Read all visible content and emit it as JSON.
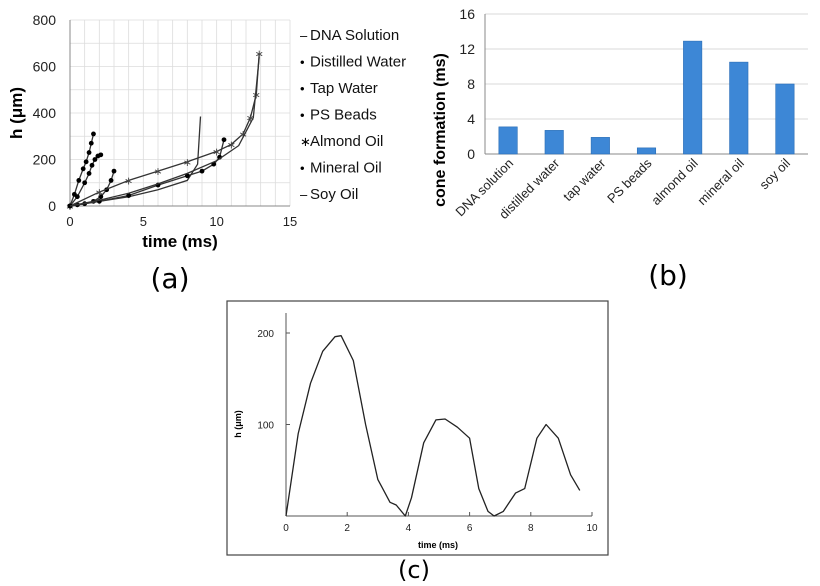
{
  "chart_data": [
    {
      "panel": "(a)",
      "type": "line",
      "xlabel": "time (ms)",
      "ylabel": "h (μm)",
      "xlim": [
        0,
        15
      ],
      "ylim": [
        0,
        800
      ],
      "xticks": [
        "0",
        "5",
        "10",
        "15"
      ],
      "yticks": [
        "0",
        "200",
        "400",
        "600",
        "800"
      ],
      "grid": true,
      "legend_position": "right",
      "series": [
        {
          "name": "DNA Solution",
          "marker": "dash",
          "x": [
            0,
            2,
            4,
            6,
            8,
            8.7,
            8.9
          ],
          "y": [
            0,
            20,
            40,
            70,
            110,
            180,
            385
          ]
        },
        {
          "name": "Distilled Water",
          "marker": "dot",
          "x": [
            0,
            0.5,
            1,
            1.3,
            1.5,
            1.7,
            1.9,
            2.1
          ],
          "y": [
            0,
            40,
            100,
            140,
            175,
            200,
            215,
            220
          ]
        },
        {
          "name": "Tap Water",
          "marker": "dot",
          "x": [
            0,
            0.5,
            1,
            1.6,
            2.1,
            2.5,
            2.8,
            3.0
          ],
          "y": [
            0,
            5,
            10,
            20,
            40,
            70,
            110,
            150
          ]
        },
        {
          "name": "PS Beads",
          "marker": "dot",
          "x": [
            0,
            0.3,
            0.6,
            0.9,
            1.1,
            1.3,
            1.45,
            1.6
          ],
          "y": [
            0,
            50,
            110,
            160,
            190,
            230,
            270,
            310
          ]
        },
        {
          "name": "Almond Oil",
          "marker": "star",
          "x": [
            0,
            2,
            4,
            6,
            8,
            10,
            11,
            11.8,
            12.3,
            12.7,
            12.9
          ],
          "y": [
            0,
            60,
            110,
            150,
            190,
            235,
            265,
            310,
            380,
            480,
            655
          ]
        },
        {
          "name": "Mineral Oil",
          "marker": "dot",
          "x": [
            0,
            2,
            4,
            6,
            8,
            9,
            9.8,
            10.2,
            10.5
          ],
          "y": [
            0,
            20,
            45,
            90,
            130,
            150,
            180,
            210,
            285
          ]
        },
        {
          "name": "Soy Oil",
          "marker": "dash",
          "x": [
            0,
            2,
            4,
            6,
            8,
            10,
            11.5,
            12.5,
            12.9
          ],
          "y": [
            0,
            25,
            55,
            95,
            140,
            195,
            260,
            380,
            640
          ]
        }
      ]
    },
    {
      "panel": "(b)",
      "type": "bar",
      "ylabel": "cone formation (ms)",
      "ylim": [
        0,
        16
      ],
      "yticks": [
        "0",
        "4",
        "8",
        "12",
        "16"
      ],
      "grid": true,
      "categories": [
        "DNA solution",
        "distilled water",
        "tap water",
        "PS beads",
        "almond oil",
        "mineral oil",
        "soy oil"
      ],
      "values": [
        3.1,
        2.7,
        1.9,
        0.7,
        12.9,
        10.5,
        8.0
      ],
      "bar_color": "#3d87d6"
    },
    {
      "panel": "(c)",
      "type": "line",
      "xlabel": "time (ms)",
      "ylabel": "h (μm)",
      "xlim": [
        0,
        10
      ],
      "ylim": [
        0,
        200
      ],
      "xticks": [
        "0",
        "2",
        "4",
        "6",
        "8",
        "10"
      ],
      "yticks": [
        "100",
        "200"
      ],
      "series": [
        {
          "x": [
            0,
            0.4,
            0.8,
            1.2,
            1.6,
            1.8,
            2.2,
            2.6,
            3.0,
            3.4,
            3.6,
            3.9,
            4.1,
            4.5,
            4.9,
            5.2,
            5.6,
            6.0,
            6.3,
            6.6,
            6.8,
            7.1,
            7.5,
            7.8,
            8.2,
            8.5,
            8.9,
            9.3,
            9.6
          ],
          "y": [
            0,
            90,
            145,
            180,
            196,
            197,
            170,
            100,
            40,
            15,
            12,
            0,
            20,
            80,
            105,
            106,
            97,
            85,
            30,
            5,
            0,
            5,
            25,
            30,
            85,
            100,
            85,
            45,
            28
          ]
        }
      ]
    }
  ],
  "legend_markers": {
    "dash": "–",
    "dot": "•",
    "star": "∗"
  },
  "panel_labels": {
    "a": "(a)",
    "b": "(b)",
    "c": "(c)"
  }
}
